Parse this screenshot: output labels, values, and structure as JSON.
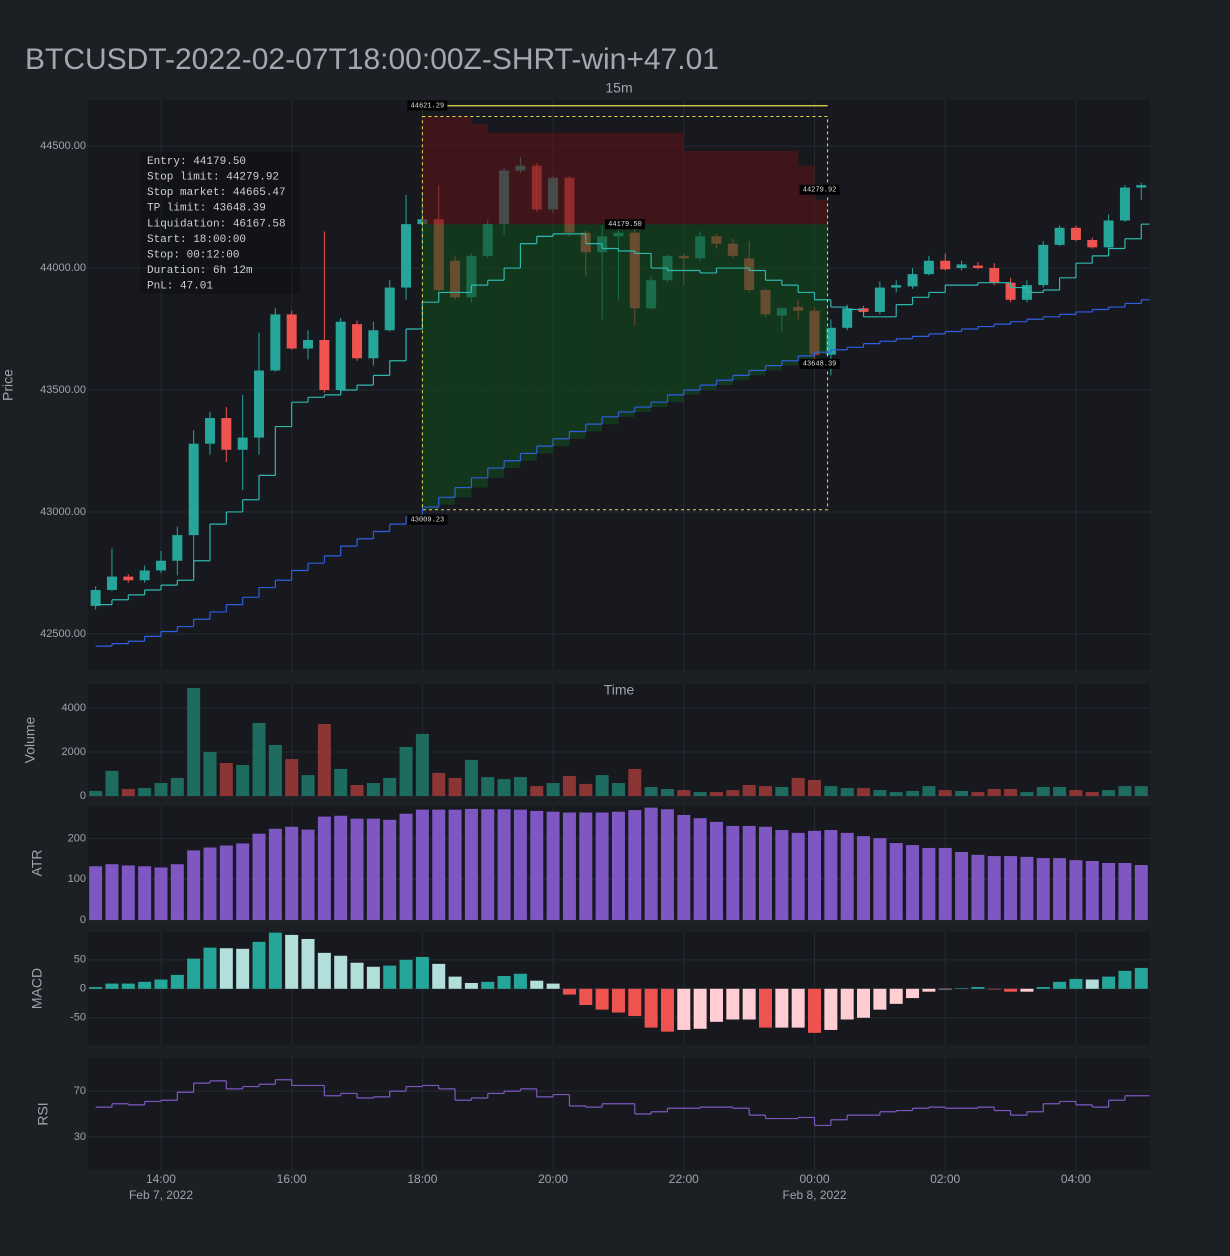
{
  "chart_data": [
    {
      "type": "candlestick",
      "title": "BTCUSDT-2022-02-07T18:00:00Z-SHRT-win+47.01",
      "subtitle": "15m",
      "xlabel": "Time",
      "ylabel": "Price",
      "x": [
        "2022-02-07T13:00",
        "2022-02-07T13:15",
        "2022-02-07T13:30",
        "2022-02-07T13:45",
        "2022-02-07T14:00",
        "2022-02-07T14:15",
        "2022-02-07T14:30",
        "2022-02-07T14:45",
        "2022-02-07T15:00",
        "2022-02-07T15:15",
        "2022-02-07T15:30",
        "2022-02-07T15:45",
        "2022-02-07T16:00",
        "2022-02-07T16:15",
        "2022-02-07T16:30",
        "2022-02-07T16:45",
        "2022-02-07T17:00",
        "2022-02-07T17:15",
        "2022-02-07T17:30",
        "2022-02-07T17:45",
        "2022-02-07T18:00",
        "2022-02-07T18:15",
        "2022-02-07T18:30",
        "2022-02-07T18:45",
        "2022-02-07T19:00",
        "2022-02-07T19:15",
        "2022-02-07T19:30",
        "2022-02-07T19:45",
        "2022-02-07T20:00",
        "2022-02-07T20:15",
        "2022-02-07T20:30",
        "2022-02-07T20:45",
        "2022-02-07T21:00",
        "2022-02-07T21:15",
        "2022-02-07T21:30",
        "2022-02-07T21:45",
        "2022-02-07T22:00",
        "2022-02-07T22:15",
        "2022-02-07T22:30",
        "2022-02-07T22:45",
        "2022-02-07T23:00",
        "2022-02-07T23:15",
        "2022-02-07T23:30",
        "2022-02-07T23:45",
        "2022-02-08T00:00",
        "2022-02-08T00:15",
        "2022-02-08T00:30",
        "2022-02-08T00:45",
        "2022-02-08T01:00",
        "2022-02-08T01:15",
        "2022-02-08T01:30",
        "2022-02-08T01:45",
        "2022-02-08T02:00",
        "2022-02-08T02:15",
        "2022-02-08T02:30",
        "2022-02-08T02:45",
        "2022-02-08T03:00",
        "2022-02-08T03:15",
        "2022-02-08T03:30",
        "2022-02-08T03:45",
        "2022-02-08T04:00",
        "2022-02-08T04:15",
        "2022-02-08T04:30",
        "2022-02-08T04:45",
        "2022-02-08T05:00"
      ],
      "open": [
        42615,
        42680,
        42735,
        42720,
        42760,
        42800,
        42905,
        43280,
        43385,
        43255,
        43305,
        43580,
        43810,
        43670,
        43705,
        43500,
        43770,
        43630,
        43745,
        43920,
        44180,
        44200,
        44030,
        43880,
        44050,
        44180,
        44400,
        44420,
        44240,
        44370,
        44145,
        44065,
        44130,
        44145,
        43835,
        43950,
        44050,
        44040,
        44130,
        44100,
        44040,
        43910,
        43805,
        43840,
        43825,
        43645,
        43755,
        43835,
        43820,
        43920,
        43925,
        43975,
        44030,
        44000,
        44010,
        44000,
        43940,
        43870,
        43930,
        44095,
        44165,
        44115,
        44085,
        44195,
        44330
      ],
      "high": [
        42695,
        42850,
        42745,
        42780,
        42840,
        42940,
        43335,
        43410,
        43430,
        43480,
        43735,
        43835,
        43825,
        43745,
        44150,
        43795,
        43785,
        43780,
        43950,
        44300,
        44310,
        44340,
        44050,
        44060,
        44200,
        44410,
        44455,
        44430,
        44380,
        44380,
        44155,
        44175,
        44155,
        44175,
        43970,
        44055,
        44060,
        44150,
        44140,
        44120,
        44110,
        43915,
        43840,
        43870,
        43840,
        43790,
        43850,
        43845,
        43945,
        43950,
        44000,
        44050,
        44060,
        44030,
        44025,
        44020,
        43960,
        43950,
        44110,
        44175,
        44175,
        44125,
        44220,
        44340,
        44350
      ],
      "low": [
        42600,
        42675,
        42710,
        42710,
        42750,
        42740,
        42730,
        43235,
        43205,
        43090,
        43235,
        43575,
        43665,
        43625,
        43490,
        43490,
        43620,
        43600,
        43740,
        43870,
        44080,
        43870,
        43870,
        43860,
        44040,
        44135,
        44390,
        44230,
        44225,
        44130,
        43970,
        43790,
        43870,
        43765,
        43830,
        43940,
        43930,
        44030,
        44080,
        44040,
        43900,
        43800,
        43740,
        43790,
        43620,
        43560,
        43745,
        43800,
        43810,
        43900,
        43915,
        43970,
        43990,
        43990,
        43995,
        43930,
        43860,
        43860,
        43920,
        44090,
        44110,
        44080,
        44080,
        44190,
        44280
      ],
      "close": [
        42680,
        42735,
        42720,
        42760,
        42800,
        42905,
        43280,
        43385,
        43255,
        43305,
        43580,
        43810,
        43670,
        43705,
        43500,
        43780,
        43630,
        43745,
        43920,
        44180,
        44200,
        43910,
        43880,
        44050,
        44180,
        44400,
        44420,
        44240,
        44370,
        44145,
        44065,
        44130,
        44145,
        43835,
        43950,
        44050,
        44040,
        44130,
        44100,
        44050,
        43910,
        43810,
        43835,
        43825,
        43645,
        43755,
        43835,
        43820,
        43920,
        43930,
        43975,
        44030,
        43995,
        44015,
        44000,
        43940,
        43870,
        43930,
        44095,
        44165,
        44115,
        44085,
        44195,
        44330,
        44340
      ],
      "colors": {
        "up": "#26a69a",
        "down": "#ef5350"
      },
      "lines": [
        {
          "color": "#2fb7ad",
          "values": [
            42620,
            42640,
            42660,
            42680,
            42700,
            42720,
            42800,
            42950,
            43000,
            43050,
            43150,
            43350,
            43450,
            43470,
            43480,
            43500,
            43520,
            43560,
            43620,
            43750,
            43860,
            43900,
            43900,
            43930,
            43950,
            44000,
            44100,
            44130,
            44140,
            44140,
            44100,
            44080,
            44070,
            44060,
            44000,
            43990,
            43990,
            43980,
            44000,
            44000,
            43990,
            43950,
            43930,
            43900,
            43870,
            43840,
            43830,
            43800,
            43800,
            43850,
            43880,
            43900,
            43930,
            43930,
            43940,
            43940,
            43920,
            43900,
            43910,
            43960,
            44020,
            44050,
            44080,
            44120,
            44180
          ]
        },
        {
          "color": "#2f5fe0",
          "values": [
            42450,
            42460,
            42470,
            42490,
            42510,
            42530,
            42560,
            42590,
            42620,
            42650,
            42690,
            42720,
            42760,
            42790,
            42820,
            42860,
            42890,
            42920,
            42950,
            42980,
            43020,
            43060,
            43100,
            43140,
            43180,
            43210,
            43240,
            43270,
            43300,
            43330,
            43360,
            43390,
            43410,
            43430,
            43450,
            43480,
            43500,
            43520,
            43540,
            43560,
            43580,
            43600,
            43620,
            43640,
            43655,
            43665,
            43675,
            43690,
            43700,
            43710,
            43720,
            43730,
            43740,
            43750,
            43760,
            43770,
            43780,
            43790,
            43800,
            43810,
            43820,
            43830,
            43840,
            43855,
            43870
          ]
        }
      ],
      "trade": {
        "start": "2022-02-07T18:00",
        "stop": "2022-02-08T00:12",
        "entry": {
          "value": 44179.5,
          "label": "44179.50"
        },
        "stop_limit": {
          "value": 44279.92,
          "label": "44279.92"
        },
        "stop_market": 44665.47,
        "tp_limit": {
          "value": 43648.39,
          "label": "43648.39"
        },
        "box_top": {
          "value": 44621.29,
          "label": "44621.29"
        },
        "box_bottom": {
          "value": 43009.23,
          "label": "43009.23"
        },
        "stop_zone": [
          44621,
          44621,
          44621,
          44590,
          44555,
          44555,
          44555,
          44555,
          44555,
          44555,
          44555,
          44555,
          44555,
          44555,
          44555,
          44555,
          44480,
          44480,
          44480,
          44480,
          44480,
          44480,
          44480,
          44420,
          44280
        ],
        "target_zone": [
          43009,
          43030,
          43060,
          43100,
          43140,
          43180,
          43210,
          43240,
          43270,
          43300,
          43330,
          43360,
          43390,
          43410,
          43430,
          43450,
          43480,
          43500,
          43520,
          43540,
          43560,
          43580,
          43600,
          43620,
          43648
        ],
        "stop_color": "#5a1418",
        "target_color": "#124a1c",
        "box_color": "#e8dc4c"
      },
      "info": [
        "Entry: 44179.50",
        "Stop limit: 44279.92",
        "Stop market: 44665.47",
        "TP limit: 43648.39",
        "Liquidation: 46167.58",
        "Start: 18:00:00",
        "Stop: 00:12:00",
        "Duration: 6h 12m",
        "PnL: 47.01"
      ],
      "xlim": [
        "2022-02-07T12:53",
        "2022-02-08T05:08"
      ],
      "xticks": [
        {
          "value": "2022-02-07T14:00",
          "label": "14:00"
        },
        {
          "value": "2022-02-07T16:00",
          "label": "16:00"
        },
        {
          "value": "2022-02-07T18:00",
          "label": "18:00"
        },
        {
          "value": "2022-02-07T20:00",
          "label": "20:00"
        },
        {
          "value": "2022-02-07T22:00",
          "label": "22:00"
        },
        {
          "value": "2022-02-08T00:00",
          "label": "00:00"
        },
        {
          "value": "2022-02-08T02:00",
          "label": "02:00"
        },
        {
          "value": "2022-02-08T04:00",
          "label": "04:00"
        }
      ],
      "xtick_dates": [
        {
          "value": "2022-02-07T14:00",
          "label": "Feb 7, 2022"
        },
        {
          "value": "2022-02-08T00:00",
          "label": "Feb 8, 2022"
        }
      ],
      "ylim": [
        42352,
        44689
      ],
      "yticks": [
        {
          "value": 42500,
          "label": "42500.00"
        },
        {
          "value": 43000,
          "label": "43000.00"
        },
        {
          "value": 43500,
          "label": "43500.00"
        },
        {
          "value": 44000,
          "label": "44000.00"
        },
        {
          "value": 44500,
          "label": "44500.00"
        }
      ]
    },
    {
      "type": "bar",
      "ylabel": "Volume",
      "values": [
        230,
        1140,
        320,
        360,
        590,
        820,
        4910,
        2000,
        1500,
        1410,
        3320,
        2320,
        1680,
        950,
        3270,
        1230,
        500,
        590,
        820,
        2230,
        2820,
        1050,
        820,
        1640,
        860,
        770,
        860,
        450,
        590,
        910,
        550,
        950,
        590,
        1230,
        410,
        320,
        270,
        180,
        180,
        270,
        500,
        450,
        410,
        820,
        730,
        450,
        360,
        360,
        270,
        180,
        230,
        450,
        270,
        230,
        180,
        320,
        320,
        180,
        410,
        410,
        270,
        180,
        270,
        450,
        450
      ],
      "colors": {
        "up": "#1e6b5f",
        "down": "#8b3535"
      },
      "ylim": [
        0,
        5090
      ],
      "yticks": [
        0,
        2000,
        4000
      ]
    },
    {
      "type": "bar",
      "ylabel": "ATR",
      "values": [
        132,
        137,
        134,
        132,
        129,
        137,
        171,
        178,
        183,
        188,
        212,
        224,
        229,
        222,
        254,
        256,
        249,
        249,
        246,
        261,
        271,
        271,
        271,
        273,
        272,
        272,
        271,
        268,
        266,
        264,
        264,
        264,
        266,
        270,
        276,
        272,
        258,
        250,
        241,
        231,
        231,
        229,
        221,
        214,
        219,
        221,
        214,
        206,
        201,
        189,
        184,
        177,
        177,
        167,
        160,
        157,
        157,
        155,
        152,
        152,
        147,
        145,
        140,
        140,
        135
      ],
      "color": "#7e57c2",
      "ylim": [
        0,
        280
      ],
      "yticks": [
        0,
        100,
        200
      ]
    },
    {
      "type": "bar",
      "ylabel": "MACD",
      "values": [
        3,
        9,
        9,
        12,
        16,
        24,
        52,
        71,
        70,
        69,
        81,
        97,
        93,
        86,
        62,
        57,
        45,
        38,
        40,
        50,
        55,
        43,
        21,
        10,
        12,
        22,
        26,
        14,
        9,
        -10,
        -28,
        -36,
        -41,
        -47,
        -67,
        -74,
        -71,
        -69,
        -57,
        -53,
        -53,
        -67,
        -67,
        -67,
        -76,
        -71,
        -53,
        -50,
        -36,
        -26,
        -16,
        -5,
        -1,
        1,
        3,
        -1,
        -5,
        -5,
        3,
        12,
        17,
        16,
        21,
        31,
        36
      ],
      "colors": {
        "rising_positive": "#26a69a",
        "falling_positive": "#b2dfdb",
        "falling_negative": "#ef5350",
        "rising_negative": "#ffcdd2"
      },
      "ylim": [
        -97,
        98
      ],
      "yticks": [
        -50,
        0,
        50
      ]
    },
    {
      "type": "line",
      "ylabel": "RSI",
      "values": [
        56,
        59,
        58,
        61,
        62,
        69,
        77,
        79,
        72,
        74,
        76,
        80,
        75,
        75,
        66,
        68,
        64,
        65,
        70,
        74,
        75,
        72,
        62,
        64,
        68,
        70,
        72,
        65,
        67,
        57,
        56,
        59,
        59,
        50,
        52,
        55,
        55,
        56,
        56,
        55,
        49,
        46,
        46,
        47,
        40,
        45,
        49,
        49,
        52,
        53,
        55,
        56,
        55,
        55,
        56,
        53,
        49,
        52,
        59,
        61,
        58,
        56,
        62,
        66,
        66
      ],
      "color": "#7e57c2",
      "ylim": [
        1,
        99
      ],
      "yticks": [
        30,
        70
      ]
    }
  ]
}
